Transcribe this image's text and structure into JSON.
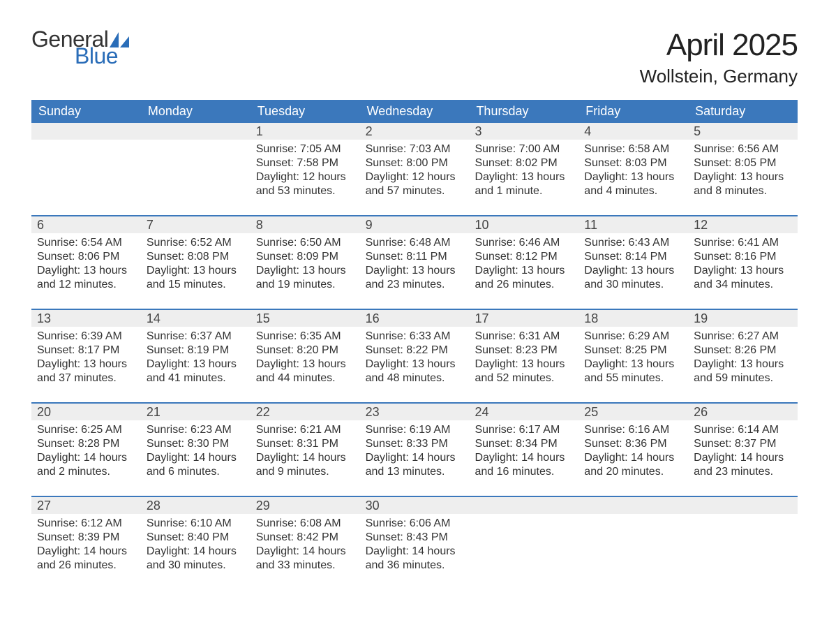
{
  "logo": {
    "text_top": "General",
    "text_bottom": "Blue"
  },
  "title": "April 2025",
  "location": "Wollstein, Germany",
  "colors": {
    "header_bg": "#3b78bc",
    "header_text": "#ffffff",
    "daynum_bg": "#eeeeee",
    "body_text": "#333333",
    "logo_blue": "#2a6db8",
    "rule": "#3b78bc"
  },
  "weekdays": [
    "Sunday",
    "Monday",
    "Tuesday",
    "Wednesday",
    "Thursday",
    "Friday",
    "Saturday"
  ],
  "weeks": [
    [
      {
        "n": "",
        "sunrise": "",
        "sunset": "",
        "daylight": ""
      },
      {
        "n": "",
        "sunrise": "",
        "sunset": "",
        "daylight": ""
      },
      {
        "n": "1",
        "sunrise": "Sunrise: 7:05 AM",
        "sunset": "Sunset: 7:58 PM",
        "daylight": "Daylight: 12 hours and 53 minutes."
      },
      {
        "n": "2",
        "sunrise": "Sunrise: 7:03 AM",
        "sunset": "Sunset: 8:00 PM",
        "daylight": "Daylight: 12 hours and 57 minutes."
      },
      {
        "n": "3",
        "sunrise": "Sunrise: 7:00 AM",
        "sunset": "Sunset: 8:02 PM",
        "daylight": "Daylight: 13 hours and 1 minute."
      },
      {
        "n": "4",
        "sunrise": "Sunrise: 6:58 AM",
        "sunset": "Sunset: 8:03 PM",
        "daylight": "Daylight: 13 hours and 4 minutes."
      },
      {
        "n": "5",
        "sunrise": "Sunrise: 6:56 AM",
        "sunset": "Sunset: 8:05 PM",
        "daylight": "Daylight: 13 hours and 8 minutes."
      }
    ],
    [
      {
        "n": "6",
        "sunrise": "Sunrise: 6:54 AM",
        "sunset": "Sunset: 8:06 PM",
        "daylight": "Daylight: 13 hours and 12 minutes."
      },
      {
        "n": "7",
        "sunrise": "Sunrise: 6:52 AM",
        "sunset": "Sunset: 8:08 PM",
        "daylight": "Daylight: 13 hours and 15 minutes."
      },
      {
        "n": "8",
        "sunrise": "Sunrise: 6:50 AM",
        "sunset": "Sunset: 8:09 PM",
        "daylight": "Daylight: 13 hours and 19 minutes."
      },
      {
        "n": "9",
        "sunrise": "Sunrise: 6:48 AM",
        "sunset": "Sunset: 8:11 PM",
        "daylight": "Daylight: 13 hours and 23 minutes."
      },
      {
        "n": "10",
        "sunrise": "Sunrise: 6:46 AM",
        "sunset": "Sunset: 8:12 PM",
        "daylight": "Daylight: 13 hours and 26 minutes."
      },
      {
        "n": "11",
        "sunrise": "Sunrise: 6:43 AM",
        "sunset": "Sunset: 8:14 PM",
        "daylight": "Daylight: 13 hours and 30 minutes."
      },
      {
        "n": "12",
        "sunrise": "Sunrise: 6:41 AM",
        "sunset": "Sunset: 8:16 PM",
        "daylight": "Daylight: 13 hours and 34 minutes."
      }
    ],
    [
      {
        "n": "13",
        "sunrise": "Sunrise: 6:39 AM",
        "sunset": "Sunset: 8:17 PM",
        "daylight": "Daylight: 13 hours and 37 minutes."
      },
      {
        "n": "14",
        "sunrise": "Sunrise: 6:37 AM",
        "sunset": "Sunset: 8:19 PM",
        "daylight": "Daylight: 13 hours and 41 minutes."
      },
      {
        "n": "15",
        "sunrise": "Sunrise: 6:35 AM",
        "sunset": "Sunset: 8:20 PM",
        "daylight": "Daylight: 13 hours and 44 minutes."
      },
      {
        "n": "16",
        "sunrise": "Sunrise: 6:33 AM",
        "sunset": "Sunset: 8:22 PM",
        "daylight": "Daylight: 13 hours and 48 minutes."
      },
      {
        "n": "17",
        "sunrise": "Sunrise: 6:31 AM",
        "sunset": "Sunset: 8:23 PM",
        "daylight": "Daylight: 13 hours and 52 minutes."
      },
      {
        "n": "18",
        "sunrise": "Sunrise: 6:29 AM",
        "sunset": "Sunset: 8:25 PM",
        "daylight": "Daylight: 13 hours and 55 minutes."
      },
      {
        "n": "19",
        "sunrise": "Sunrise: 6:27 AM",
        "sunset": "Sunset: 8:26 PM",
        "daylight": "Daylight: 13 hours and 59 minutes."
      }
    ],
    [
      {
        "n": "20",
        "sunrise": "Sunrise: 6:25 AM",
        "sunset": "Sunset: 8:28 PM",
        "daylight": "Daylight: 14 hours and 2 minutes."
      },
      {
        "n": "21",
        "sunrise": "Sunrise: 6:23 AM",
        "sunset": "Sunset: 8:30 PM",
        "daylight": "Daylight: 14 hours and 6 minutes."
      },
      {
        "n": "22",
        "sunrise": "Sunrise: 6:21 AM",
        "sunset": "Sunset: 8:31 PM",
        "daylight": "Daylight: 14 hours and 9 minutes."
      },
      {
        "n": "23",
        "sunrise": "Sunrise: 6:19 AM",
        "sunset": "Sunset: 8:33 PM",
        "daylight": "Daylight: 14 hours and 13 minutes."
      },
      {
        "n": "24",
        "sunrise": "Sunrise: 6:17 AM",
        "sunset": "Sunset: 8:34 PM",
        "daylight": "Daylight: 14 hours and 16 minutes."
      },
      {
        "n": "25",
        "sunrise": "Sunrise: 6:16 AM",
        "sunset": "Sunset: 8:36 PM",
        "daylight": "Daylight: 14 hours and 20 minutes."
      },
      {
        "n": "26",
        "sunrise": "Sunrise: 6:14 AM",
        "sunset": "Sunset: 8:37 PM",
        "daylight": "Daylight: 14 hours and 23 minutes."
      }
    ],
    [
      {
        "n": "27",
        "sunrise": "Sunrise: 6:12 AM",
        "sunset": "Sunset: 8:39 PM",
        "daylight": "Daylight: 14 hours and 26 minutes."
      },
      {
        "n": "28",
        "sunrise": "Sunrise: 6:10 AM",
        "sunset": "Sunset: 8:40 PM",
        "daylight": "Daylight: 14 hours and 30 minutes."
      },
      {
        "n": "29",
        "sunrise": "Sunrise: 6:08 AM",
        "sunset": "Sunset: 8:42 PM",
        "daylight": "Daylight: 14 hours and 33 minutes."
      },
      {
        "n": "30",
        "sunrise": "Sunrise: 6:06 AM",
        "sunset": "Sunset: 8:43 PM",
        "daylight": "Daylight: 14 hours and 36 minutes."
      },
      {
        "n": "",
        "sunrise": "",
        "sunset": "",
        "daylight": ""
      },
      {
        "n": "",
        "sunrise": "",
        "sunset": "",
        "daylight": ""
      },
      {
        "n": "",
        "sunrise": "",
        "sunset": "",
        "daylight": ""
      }
    ]
  ]
}
